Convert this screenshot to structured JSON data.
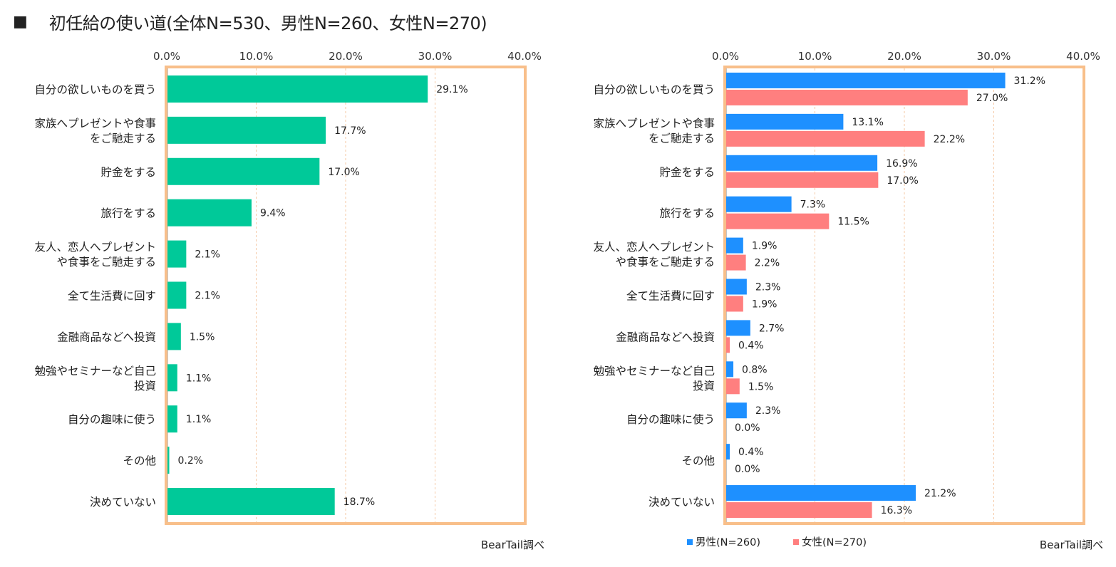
{
  "page": {
    "title_marker": "■",
    "title": "初任給の使い道(全体N=530、男性N=260、女性N=270)"
  },
  "colors": {
    "total": "#00C999",
    "male": "#1E90FF",
    "female": "#FF7F7F",
    "frame": "#F8BF8A",
    "grid": "#F5C9A6"
  },
  "chart_data": [
    {
      "type": "bar",
      "orientation": "horizontal",
      "categories": [
        [
          "自分の欲しいものを買う"
        ],
        [
          "家族へプレゼントや食事",
          "をご馳走する"
        ],
        [
          "貯金をする"
        ],
        [
          "旅行をする"
        ],
        [
          "友人、恋人へプレゼント",
          "や食事をご馳走する"
        ],
        [
          "全て生活費に回す"
        ],
        [
          "金融商品などへ投資"
        ],
        [
          "勉強やセミナーなど自己",
          "投資"
        ],
        [
          "自分の趣味に使う"
        ],
        [
          "その他"
        ],
        [
          "決めていない"
        ]
      ],
      "series": [
        {
          "values": [
            29.1,
            17.7,
            17.0,
            9.4,
            2.1,
            2.1,
            1.5,
            1.1,
            1.1,
            0.2,
            18.7
          ],
          "labels": [
            "29.1%",
            "17.7%",
            "17.0%",
            "9.4%",
            "2.1%",
            "2.1%",
            "1.5%",
            "1.1%",
            "1.1%",
            "0.2%",
            "18.7%"
          ]
        }
      ],
      "xlim": [
        0,
        40
      ],
      "ticks": [
        "0.0%",
        "10.0%",
        "20.0%",
        "30.0%",
        "40.0%"
      ],
      "grid": true,
      "source": "BearTail調べ"
    },
    {
      "type": "bar",
      "orientation": "horizontal",
      "categories": [
        [
          "自分の欲しいものを買う"
        ],
        [
          "家族へプレゼントや食事",
          "をご馳走する"
        ],
        [
          "貯金をする"
        ],
        [
          "旅行をする"
        ],
        [
          "友人、恋人へプレゼント",
          "や食事をご馳走する"
        ],
        [
          "全て生活費に回す"
        ],
        [
          "金融商品などへ投資"
        ],
        [
          "勉強やセミナーなど自己",
          "投資"
        ],
        [
          "自分の趣味に使う"
        ],
        [
          "その他"
        ],
        [
          "決めていない"
        ]
      ],
      "series": [
        {
          "name": "男性(N=260)",
          "values": [
            31.2,
            13.1,
            16.9,
            7.3,
            1.9,
            2.3,
            2.7,
            0.8,
            2.3,
            0.4,
            21.2
          ],
          "labels": [
            "31.2%",
            "13.1%",
            "16.9%",
            "7.3%",
            "1.9%",
            "2.3%",
            "2.7%",
            "0.8%",
            "2.3%",
            "0.4%",
            "21.2%"
          ]
        },
        {
          "name": "女性(N=270)",
          "values": [
            27.0,
            22.2,
            17.0,
            11.5,
            2.2,
            1.9,
            0.4,
            1.5,
            0.0,
            0.0,
            16.3
          ],
          "labels": [
            "27.0%",
            "22.2%",
            "17.0%",
            "11.5%",
            "2.2%",
            "1.9%",
            "0.4%",
            "1.5%",
            "0.0%",
            "0.0%",
            "16.3%"
          ]
        }
      ],
      "xlim": [
        0,
        40
      ],
      "ticks": [
        "0.0%",
        "10.0%",
        "20.0%",
        "30.0%",
        "40.0%"
      ],
      "grid": true,
      "legend": "bottom",
      "source": "BearTail調べ"
    }
  ]
}
